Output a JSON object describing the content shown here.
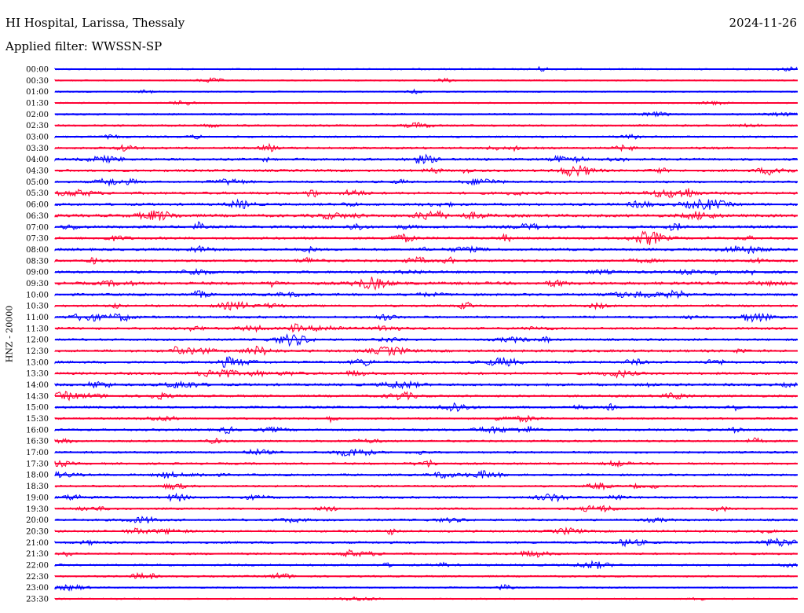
{
  "header": {
    "station": "HI Hospital, Larissa, Thessaly",
    "date": "2024-11-26",
    "filter": "Applied filter: WWSSN-SP"
  },
  "chart_data": {
    "type": "line",
    "title": "HI Hospital, Larissa, Thessaly",
    "ylabel": "HNZ - 20000",
    "colors": {
      "even": "#0000ff",
      "odd": "#ff0033"
    },
    "rows": [
      "00:00",
      "00:30",
      "01:00",
      "01:30",
      "02:00",
      "02:30",
      "03:00",
      "03:30",
      "04:00",
      "04:30",
      "05:00",
      "05:30",
      "06:00",
      "06:30",
      "07:00",
      "07:30",
      "08:00",
      "08:30",
      "09:00",
      "09:30",
      "10:00",
      "10:30",
      "11:00",
      "11:30",
      "12:00",
      "12:30",
      "13:00",
      "13:30",
      "14:00",
      "14:30",
      "15:00",
      "15:30",
      "16:00",
      "16:30",
      "17:00",
      "17:30",
      "18:00",
      "18:30",
      "19:00",
      "19:30",
      "20:00",
      "20:30",
      "21:00",
      "21:30",
      "22:00",
      "22:30",
      "23:00",
      "23:30"
    ],
    "activity": [
      0.3,
      0.2,
      0.2,
      0.2,
      0.3,
      0.4,
      0.4,
      0.6,
      0.7,
      0.7,
      0.6,
      0.8,
      0.7,
      0.9,
      0.8,
      0.7,
      0.7,
      0.7,
      0.7,
      0.9,
      0.7,
      0.6,
      0.7,
      0.7,
      0.6,
      0.8,
      0.7,
      0.7,
      0.7,
      0.6,
      0.6,
      0.5,
      0.6,
      0.5,
      0.5,
      0.5,
      0.6,
      0.5,
      0.6,
      0.5,
      0.6,
      0.6,
      0.6,
      0.5,
      0.5,
      0.4,
      0.3,
      0.2
    ]
  }
}
